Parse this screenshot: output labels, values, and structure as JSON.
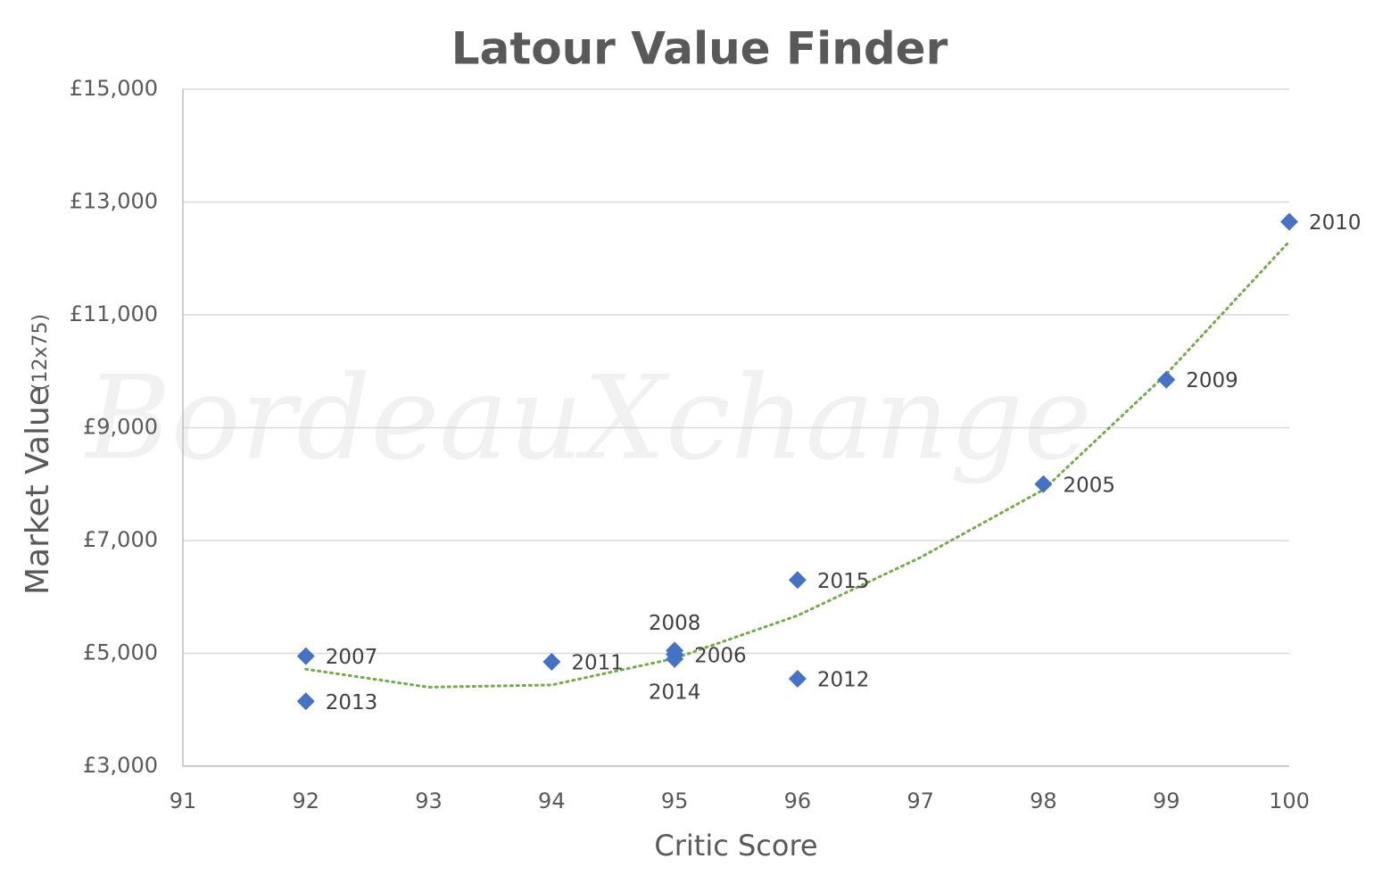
{
  "chart_data": {
    "type": "scatter",
    "title": "Latour Value Finder",
    "x_label": "Critic Score",
    "y_label": "Market Value",
    "y_label_note": "(12x75)",
    "watermark": "BordeauXchange",
    "series": [
      {
        "color": "#4472c4",
        "x": [
          92,
          92,
          94,
          95,
          95,
          95,
          96,
          96,
          98,
          99,
          100
        ],
        "values": [
          4950,
          4150,
          4850,
          5050,
          4980,
          4900,
          6300,
          4550,
          8000,
          9850,
          12650
        ],
        "labels": [
          "2007",
          "2013",
          "2011",
          "2008",
          "2006",
          "2014",
          "2015",
          "2012",
          "2005",
          "2009",
          "2010"
        ]
      }
    ],
    "trendline": {
      "color": "#70ad47",
      "x": [
        92,
        93,
        94,
        95,
        96,
        97,
        98,
        99,
        100
      ],
      "values": [
        4720,
        4400,
        4440,
        4910,
        5670,
        6700,
        7900,
        9950,
        12300
      ]
    },
    "xlim": [
      91,
      100
    ],
    "xticks": [
      91,
      92,
      93,
      94,
      95,
      96,
      97,
      98,
      99,
      100
    ],
    "ylim": [
      3000,
      15000
    ],
    "yticks": [
      {
        "value": 3000,
        "label": "£3,000"
      },
      {
        "value": 5000,
        "label": "£5,000"
      },
      {
        "value": 7000,
        "label": "£7,000"
      },
      {
        "value": 9000,
        "label": "£9,000"
      },
      {
        "value": 11000,
        "label": "£11,000"
      },
      {
        "value": 13000,
        "label": "£13,000"
      },
      {
        "value": 15000,
        "label": "£15,000"
      }
    ],
    "grid": true
  }
}
